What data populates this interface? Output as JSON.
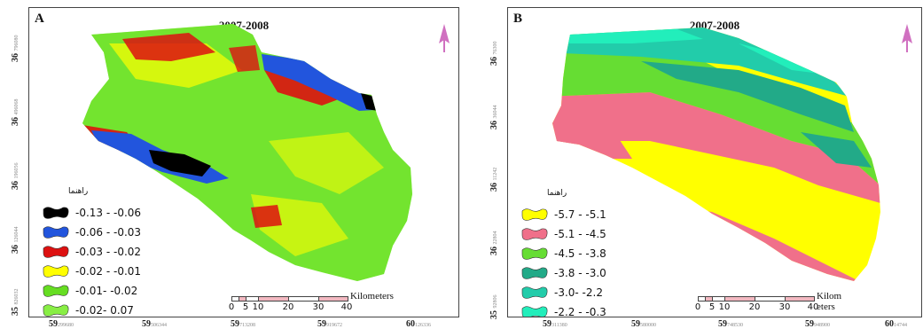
{
  "panels": [
    {
      "letter": "A",
      "title": "2007-2008",
      "legend_title": "راهنما",
      "legend": [
        {
          "label": "-0.13 - -0.06",
          "color": "#000000"
        },
        {
          "label": "-0.06 - -0.03",
          "color": "#2255dd"
        },
        {
          "label": "-0.03 - -0.02",
          "color": "#dd1111"
        },
        {
          "label": "-0.02 - -0.01",
          "color": "#ffff00"
        },
        {
          "label": "-0.01- -0.02",
          "color": "#66dd22"
        },
        {
          "label": "-0.02- 0.07",
          "color": "#88ee44"
        }
      ],
      "scale_ticks": [
        "0",
        "5",
        "10",
        "20",
        "30",
        "40"
      ],
      "scale_unit": "Kilometers",
      "y_labels": [
        {
          "main": "36",
          "sub": "796080"
        },
        {
          "main": "36",
          "sub": "496068"
        },
        {
          "main": "36",
          "sub": "196056"
        },
        {
          "main": "36",
          "sub": "126044"
        },
        {
          "main": "35",
          "sub": "826032"
        }
      ],
      "x_labels": [
        {
          "main": "59",
          "sub": "299680"
        },
        {
          "main": "59",
          "sub": "506344"
        },
        {
          "main": "59",
          "sub": "713208"
        },
        {
          "main": "59",
          "sub": "919672"
        },
        {
          "main": "60",
          "sub": "126336"
        }
      ]
    },
    {
      "letter": "B",
      "title": "2007-2008",
      "legend_title": "راهنما",
      "legend": [
        {
          "label": "-5.7 - -5.1",
          "color": "#ffff00"
        },
        {
          "label": "-5.1 - -4.5",
          "color": "#f0708a"
        },
        {
          "label": "-4.5 - -3.8",
          "color": "#66dd33"
        },
        {
          "label": "-3.8 - -3.0",
          "color": "#22aa88"
        },
        {
          "label": "-3.0- -2.2",
          "color": "#22ccaa"
        },
        {
          "label": "-2.2 - -0.3",
          "color": "#22eebb"
        }
      ],
      "scale_ticks": [
        "0",
        "5",
        "10",
        "20",
        "30",
        "40"
      ],
      "scale_unit": "Kilom eters",
      "y_labels": [
        {
          "main": "36",
          "sub": "76300"
        },
        {
          "main": "36",
          "sub": "36044"
        },
        {
          "main": "36",
          "sub": "11242"
        },
        {
          "main": "36",
          "sub": "22804"
        },
        {
          "main": "35",
          "sub": "92806"
        }
      ],
      "x_labels": [
        {
          "main": "59",
          "sub": "311380"
        },
        {
          "main": "59",
          "sub": "580000"
        },
        {
          "main": "59",
          "sub": "748530"
        },
        {
          "main": "59",
          "sub": "948900"
        },
        {
          "main": "60",
          "sub": "14744"
        }
      ]
    }
  ]
}
